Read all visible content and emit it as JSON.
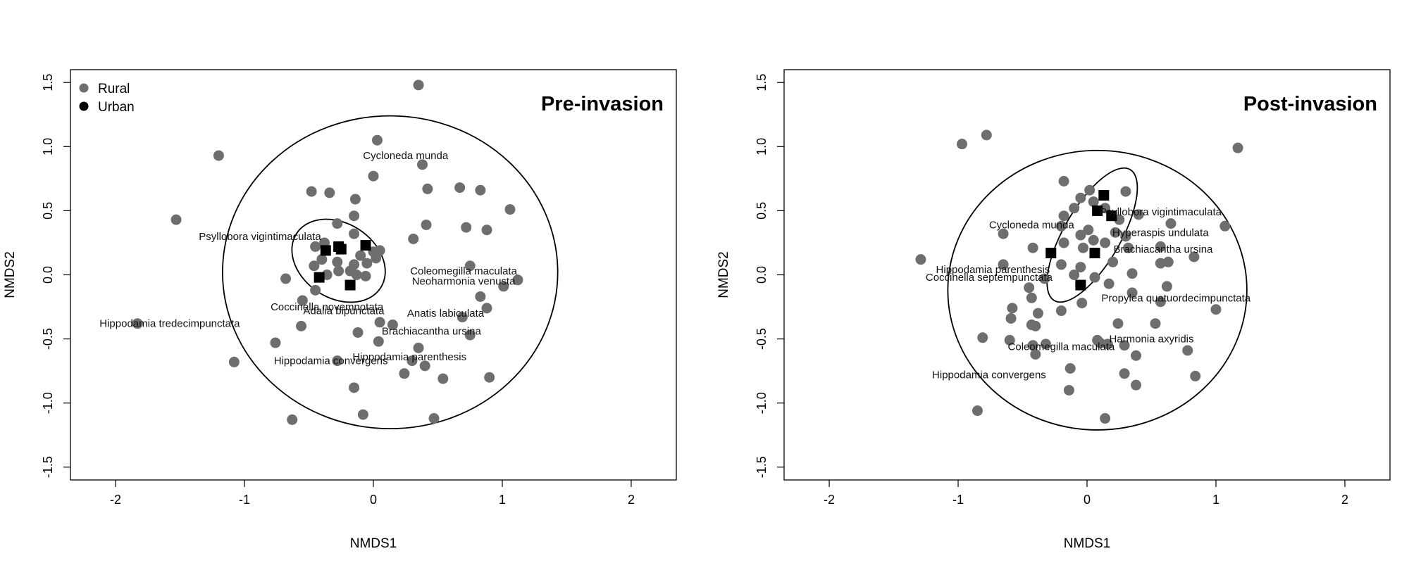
{
  "chart_data": [
    {
      "type": "scatter",
      "title": "Pre-invasion",
      "xlabel": "NMDS1",
      "ylabel": "NMDS2",
      "xlim": [
        -2.35,
        2.35
      ],
      "ylim": [
        -1.6,
        1.6
      ],
      "xticks": [
        "-2",
        "-1",
        "0",
        "1",
        "2"
      ],
      "yticks": [
        "-1.5",
        "-1.0",
        "-0.5",
        "0.0",
        "0.5",
        "1.0",
        "1.5"
      ],
      "legend": {
        "position": "top-left",
        "entries": [
          "Rural",
          "Urban"
        ]
      },
      "colors": {
        "rural": "#6e6e6e",
        "urban": "#000000"
      },
      "series": [
        {
          "name": "Rural",
          "marker": "circle",
          "points": [
            [
              0.35,
              1.48
            ],
            [
              0.03,
              1.05
            ],
            [
              -1.2,
              0.93
            ],
            [
              0.38,
              0.86
            ],
            [
              0.0,
              0.77
            ],
            [
              0.42,
              0.67
            ],
            [
              -0.48,
              0.65
            ],
            [
              -0.34,
              0.64
            ],
            [
              0.67,
              0.68
            ],
            [
              0.83,
              0.66
            ],
            [
              -0.14,
              0.59
            ],
            [
              1.06,
              0.51
            ],
            [
              -1.53,
              0.43
            ],
            [
              -0.15,
              0.46
            ],
            [
              0.41,
              0.39
            ],
            [
              0.72,
              0.37
            ],
            [
              -0.28,
              0.4
            ],
            [
              0.88,
              0.35
            ],
            [
              0.31,
              0.28
            ],
            [
              -0.15,
              0.32
            ],
            [
              -0.45,
              0.22
            ],
            [
              -0.38,
              0.25
            ],
            [
              -0.1,
              0.15
            ],
            [
              0.0,
              0.18
            ],
            [
              0.05,
              0.19
            ],
            [
              -0.4,
              0.12
            ],
            [
              -0.28,
              0.1
            ],
            [
              -0.05,
              0.09
            ],
            [
              -0.15,
              0.08
            ],
            [
              0.02,
              0.13
            ],
            [
              -0.46,
              0.07
            ],
            [
              -0.36,
              0.0
            ],
            [
              -0.27,
              0.03
            ],
            [
              -0.18,
              0.03
            ],
            [
              -0.13,
              0.0
            ],
            [
              -0.06,
              -0.01
            ],
            [
              -0.68,
              -0.03
            ],
            [
              0.75,
              0.07
            ],
            [
              1.12,
              -0.04
            ],
            [
              1.01,
              -0.09
            ],
            [
              -0.45,
              -0.12
            ],
            [
              -0.55,
              -0.2
            ],
            [
              0.83,
              -0.17
            ],
            [
              0.88,
              -0.26
            ],
            [
              0.69,
              -0.33
            ],
            [
              0.05,
              -0.37
            ],
            [
              0.15,
              -0.39
            ],
            [
              -0.56,
              -0.4
            ],
            [
              -1.83,
              -0.38
            ],
            [
              -0.12,
              -0.45
            ],
            [
              0.75,
              -0.47
            ],
            [
              -0.76,
              -0.53
            ],
            [
              0.04,
              -0.52
            ],
            [
              0.35,
              -0.57
            ],
            [
              -1.08,
              -0.68
            ],
            [
              -0.28,
              -0.67
            ],
            [
              0.3,
              -0.67
            ],
            [
              0.4,
              -0.71
            ],
            [
              0.24,
              -0.77
            ],
            [
              0.54,
              -0.81
            ],
            [
              0.9,
              -0.8
            ],
            [
              -0.15,
              -0.88
            ],
            [
              -0.08,
              -1.09
            ],
            [
              0.47,
              -1.12
            ],
            [
              -0.63,
              -1.13
            ]
          ]
        },
        {
          "name": "Urban",
          "marker": "square",
          "points": [
            [
              -0.27,
              0.22
            ],
            [
              -0.06,
              0.23
            ],
            [
              -0.37,
              0.19
            ],
            [
              -0.25,
              0.2
            ],
            [
              -0.42,
              -0.02
            ],
            [
              -0.18,
              -0.08
            ]
          ]
        }
      ],
      "ellipses": [
        {
          "cx": 0.13,
          "cy": 0.02,
          "rx": 1.3,
          "ry": 1.22,
          "angle": 0
        },
        {
          "cx": -0.27,
          "cy": 0.11,
          "rx": 0.29,
          "ry": 0.39,
          "angle": 57
        }
      ],
      "annotations": [
        {
          "text": "Cycloneda munda",
          "x": 0.25,
          "y": 0.93
        },
        {
          "text": "Psyllobora vigintimaculata",
          "x": -0.88,
          "y": 0.3
        },
        {
          "text": "Coleomegilla maculata",
          "x": 0.7,
          "y": 0.03
        },
        {
          "text": "Neoharmonia venusta",
          "x": 0.7,
          "y": -0.05
        },
        {
          "text": "Coccinella novemnotata",
          "x": -0.36,
          "y": -0.25
        },
        {
          "text": "Adalia bipunctata",
          "x": -0.23,
          "y": -0.28
        },
        {
          "text": "Anatis labiculata",
          "x": 0.56,
          "y": -0.3
        },
        {
          "text": "Hippodamia tredecimpunctata",
          "x": -1.58,
          "y": -0.38
        },
        {
          "text": "Brachiacantha ursina",
          "x": 0.45,
          "y": -0.44
        },
        {
          "text": "Hippodamia parenthesis",
          "x": 0.28,
          "y": -0.64
        },
        {
          "text": "Hippodamia convergens",
          "x": -0.33,
          "y": -0.67
        }
      ]
    },
    {
      "type": "scatter",
      "title": "Post-invasion",
      "xlabel": "NMDS1",
      "ylabel": "NMDS2",
      "xlim": [
        -2.35,
        2.35
      ],
      "ylim": [
        -1.6,
        1.6
      ],
      "xticks": [
        "-2",
        "-1",
        "0",
        "1",
        "2"
      ],
      "yticks": [
        "-1.5",
        "-1.0",
        "-0.5",
        "0.0",
        "0.5",
        "1.0",
        "1.5"
      ],
      "colors": {
        "rural": "#6e6e6e",
        "urban": "#000000"
      },
      "series": [
        {
          "name": "Rural",
          "marker": "circle",
          "points": [
            [
              -0.78,
              1.09
            ],
            [
              -0.97,
              1.02
            ],
            [
              1.17,
              0.99
            ],
            [
              -0.18,
              0.73
            ],
            [
              0.02,
              0.66
            ],
            [
              0.3,
              0.65
            ],
            [
              -0.05,
              0.6
            ],
            [
              0.05,
              0.57
            ],
            [
              -0.1,
              0.52
            ],
            [
              0.14,
              0.52
            ],
            [
              -0.18,
              0.46
            ],
            [
              0.25,
              0.43
            ],
            [
              0.4,
              0.47
            ],
            [
              0.65,
              0.4
            ],
            [
              1.07,
              0.38
            ],
            [
              -0.2,
              0.38
            ],
            [
              0.01,
              0.35
            ],
            [
              0.22,
              0.33
            ],
            [
              -0.65,
              0.32
            ],
            [
              -0.05,
              0.31
            ],
            [
              0.05,
              0.27
            ],
            [
              0.3,
              0.3
            ],
            [
              -0.18,
              0.25
            ],
            [
              0.14,
              0.25
            ],
            [
              -0.42,
              0.21
            ],
            [
              -0.03,
              0.21
            ],
            [
              0.32,
              0.21
            ],
            [
              0.57,
              0.22
            ],
            [
              -1.29,
              0.12
            ],
            [
              -0.65,
              0.08
            ],
            [
              0.2,
              0.1
            ],
            [
              0.57,
              0.09
            ],
            [
              0.63,
              0.1
            ],
            [
              0.83,
              0.14
            ],
            [
              -0.05,
              0.06
            ],
            [
              -0.2,
              0.08
            ],
            [
              -0.1,
              0.0
            ],
            [
              0.06,
              -0.02
            ],
            [
              0.35,
              0.01
            ],
            [
              -0.33,
              -0.03
            ],
            [
              0.17,
              -0.07
            ],
            [
              0.62,
              -0.09
            ],
            [
              -0.45,
              -0.1
            ],
            [
              0.35,
              -0.14
            ],
            [
              -0.43,
              -0.18
            ],
            [
              -0.04,
              -0.22
            ],
            [
              0.57,
              -0.21
            ],
            [
              -0.58,
              -0.26
            ],
            [
              -0.2,
              -0.28
            ],
            [
              1.0,
              -0.27
            ],
            [
              -0.38,
              -0.3
            ],
            [
              -0.59,
              -0.34
            ],
            [
              -0.43,
              -0.39
            ],
            [
              0.24,
              -0.38
            ],
            [
              0.53,
              -0.38
            ],
            [
              -0.4,
              -0.4
            ],
            [
              -0.81,
              -0.49
            ],
            [
              -0.6,
              -0.51
            ],
            [
              0.08,
              -0.51
            ],
            [
              0.1,
              -0.53
            ],
            [
              0.16,
              -0.54
            ],
            [
              -0.32,
              -0.54
            ],
            [
              0.29,
              -0.55
            ],
            [
              -0.42,
              -0.55
            ],
            [
              0.78,
              -0.59
            ],
            [
              -0.4,
              -0.62
            ],
            [
              0.38,
              -0.63
            ],
            [
              -0.13,
              -0.73
            ],
            [
              0.84,
              -0.79
            ],
            [
              0.29,
              -0.77
            ],
            [
              0.38,
              -0.86
            ],
            [
              -0.14,
              -0.9
            ],
            [
              -0.85,
              -1.06
            ],
            [
              0.14,
              -1.12
            ]
          ]
        },
        {
          "name": "Urban",
          "marker": "square",
          "points": [
            [
              0.13,
              0.62
            ],
            [
              0.08,
              0.5
            ],
            [
              0.19,
              0.46
            ],
            [
              -0.28,
              0.17
            ],
            [
              0.06,
              0.17
            ],
            [
              -0.05,
              -0.08
            ]
          ]
        }
      ],
      "ellipses": [
        {
          "cx": 0.08,
          "cy": -0.12,
          "rx": 1.16,
          "ry": 1.09,
          "angle": 0
        },
        {
          "cx": 0.04,
          "cy": 0.31,
          "rx": 0.22,
          "ry": 0.59,
          "angle": -30
        }
      ],
      "annotations": [
        {
          "text": "Psyllobora vigintimaculata",
          "x": 0.57,
          "y": 0.49
        },
        {
          "text": "Cycloneda munda",
          "x": -0.43,
          "y": 0.39
        },
        {
          "text": "Hyperaspis undulata",
          "x": 0.57,
          "y": 0.33
        },
        {
          "text": "Brachiacantha ursina",
          "x": 0.59,
          "y": 0.2
        },
        {
          "text": "Hippodamia parenthesis",
          "x": -0.73,
          "y": 0.04
        },
        {
          "text": "Coccinella septempunctata",
          "x": -0.76,
          "y": -0.02
        },
        {
          "text": "Propylea quatuordecimpunctata",
          "x": 0.69,
          "y": -0.18
        },
        {
          "text": "Harmonia axyridis",
          "x": 0.5,
          "y": -0.5
        },
        {
          "text": "Coleomegilla maculata",
          "x": -0.2,
          "y": -0.56
        },
        {
          "text": "Hippodamia convergens",
          "x": -0.76,
          "y": -0.78
        }
      ]
    }
  ]
}
